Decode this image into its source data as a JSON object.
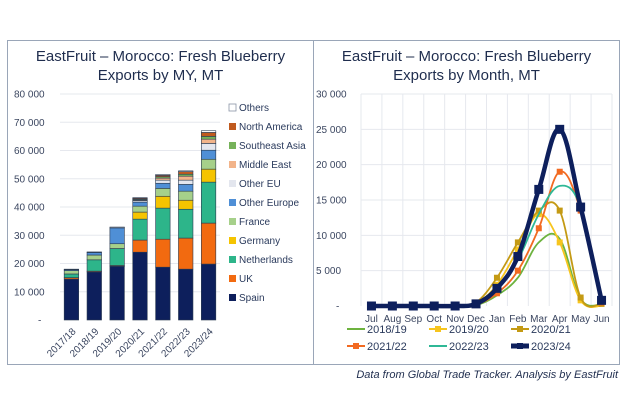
{
  "chart_data": [
    {
      "type": "bar",
      "stacked": true,
      "title": "EastFruit – Morocco: Fresh Blueberry Exports by MY, MT",
      "title_lines": [
        "EastFruit – Morocco: Fresh Blueberry",
        "Exports by MY, MT"
      ],
      "xlabel": "",
      "ylabel": "",
      "ylim": [
        0,
        80000
      ],
      "yticks": [
        0,
        10000,
        20000,
        30000,
        40000,
        50000,
        60000,
        70000,
        80000
      ],
      "ytick_labels": [
        "-",
        "10 000",
        "20 000",
        "30 000",
        "40 000",
        "50 000",
        "60 000",
        "70 000",
        "80 000"
      ],
      "grid": true,
      "legend_position": "right",
      "categories": [
        "2017/18",
        "2018/19",
        "2019/20",
        "2020/21",
        "2021/22",
        "2022/23",
        "2023/24"
      ],
      "series": [
        {
          "name": "Spain",
          "color": "#0d1f5c",
          "values": [
            14500,
            17000,
            19000,
            24000,
            18700,
            18000,
            19800
          ]
        },
        {
          "name": "UK",
          "color": "#f26a10",
          "values": [
            500,
            300,
            300,
            4300,
            9900,
            11000,
            14500
          ]
        },
        {
          "name": "Netherlands",
          "color": "#2db58a",
          "values": [
            1300,
            4000,
            6000,
            7400,
            11000,
            10200,
            14500
          ]
        },
        {
          "name": "Germany",
          "color": "#f5c400",
          "values": [
            0,
            0,
            0,
            2500,
            4200,
            3200,
            4600
          ]
        },
        {
          "name": "France",
          "color": "#a6d08a",
          "values": [
            1200,
            1700,
            1700,
            2100,
            2800,
            3200,
            3500
          ]
        },
        {
          "name": "Other Europe",
          "color": "#4f8fd6",
          "values": [
            300,
            900,
            5600,
            1400,
            1800,
            2400,
            3200
          ]
        },
        {
          "name": "Other EU",
          "color": "#e3e6ee",
          "values": [
            0,
            0,
            0,
            500,
            1100,
            1500,
            2400
          ]
        },
        {
          "name": "Middle East",
          "color": "#f2b48a",
          "values": [
            0,
            0,
            0,
            300,
            700,
            1400,
            1500
          ]
        },
        {
          "name": "Southeast Asia",
          "color": "#76b25a",
          "values": [
            0,
            0,
            0,
            300,
            500,
            700,
            1000
          ]
        },
        {
          "name": "North America",
          "color": "#c05a1e",
          "values": [
            0,
            0,
            0,
            300,
            500,
            900,
            1400
          ]
        },
        {
          "name": "Others",
          "color": "#ffffff",
          "values": [
            200,
            200,
            300,
            200,
            300,
            300,
            600
          ]
        }
      ]
    },
    {
      "type": "line",
      "title": "EastFruit – Morocco: Fresh Blueberry Exports by Month, MT",
      "title_lines": [
        "EastFruit – Morocco: Fresh Blueberry",
        "Exports by Month, MT"
      ],
      "xlabel": "",
      "ylabel": "",
      "ylim": [
        0,
        30000
      ],
      "yticks": [
        0,
        5000,
        10000,
        15000,
        20000,
        25000,
        30000
      ],
      "ytick_labels": [
        "-",
        "5 000",
        "10 000",
        "15 000",
        "20 000",
        "25 000",
        "30 000"
      ],
      "grid": true,
      "legend_position": "bottom",
      "x": [
        "Jul",
        "Aug",
        "Sep",
        "Oct",
        "Nov",
        "Dec",
        "Jan",
        "Feb",
        "Mar",
        "Apr",
        "May",
        "Jun"
      ],
      "series": [
        {
          "name": "2018/19",
          "color": "#6db33f",
          "marker": "none",
          "values": [
            0,
            0,
            0,
            0,
            0,
            100,
            1500,
            4000,
            9000,
            9500,
            1000,
            200
          ]
        },
        {
          "name": "2019/20",
          "color": "#f7c51e",
          "marker": "square",
          "values": [
            0,
            0,
            0,
            0,
            0,
            400,
            3000,
            8000,
            13000,
            9000,
            800,
            0
          ]
        },
        {
          "name": "2020/21",
          "color": "#c49a14",
          "marker": "square",
          "values": [
            0,
            0,
            0,
            0,
            0,
            500,
            4000,
            9000,
            13500,
            13500,
            1200,
            300
          ]
        },
        {
          "name": "2021/22",
          "color": "#f26a21",
          "marker": "square",
          "values": [
            0,
            0,
            0,
            0,
            0,
            200,
            1800,
            5000,
            11000,
            19000,
            13500,
            500
          ]
        },
        {
          "name": "2022/23",
          "color": "#2fb896",
          "marker": "none",
          "values": [
            0,
            0,
            0,
            0,
            0,
            300,
            2500,
            6500,
            13000,
            17000,
            14000,
            600
          ]
        },
        {
          "name": "2023/24",
          "color": "#0d1f5c",
          "marker": "square",
          "values": [
            0,
            0,
            0,
            0,
            0,
            300,
            2500,
            7000,
            16500,
            25000,
            14000,
            800
          ]
        }
      ]
    }
  ],
  "footer": {
    "credit": "Data from Global Trade Tracker. Analysis by EastFruit"
  }
}
